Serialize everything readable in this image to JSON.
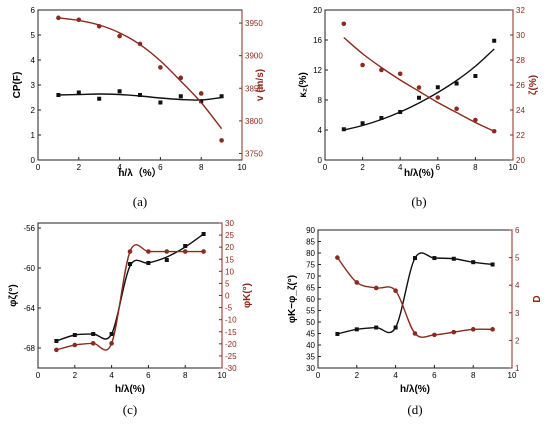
{
  "colors": {
    "black": "#111111",
    "red": "#8b2a1e"
  },
  "chart_data": [
    {
      "type": "scatter",
      "panel_label": "(a)",
      "xlabel": "h/λ（%）",
      "xlim": [
        0,
        10
      ],
      "xticks": [
        0,
        2,
        4,
        6,
        8,
        10
      ],
      "left_axis": {
        "label": "C_P(F)",
        "lim": [
          0,
          6
        ],
        "ticks": [
          0,
          1,
          2,
          3,
          4,
          5,
          6
        ]
      },
      "right_axis": {
        "label": "v (m/s)",
        "lim": [
          3740,
          3970
        ],
        "ticks": [
          3750,
          3800,
          3850,
          3900,
          3950
        ]
      },
      "series": [
        {
          "axis": "left",
          "color": "black",
          "marker": "square",
          "curve": "fit",
          "x": [
            1,
            2,
            3,
            4,
            5,
            6,
            7,
            8,
            9
          ],
          "y": [
            2.6,
            2.7,
            2.45,
            2.75,
            2.6,
            2.3,
            2.55,
            2.35,
            2.55
          ],
          "fit": [
            2.6,
            2.62,
            2.64,
            2.62,
            2.56,
            2.48,
            2.42,
            2.4,
            2.5
          ]
        },
        {
          "axis": "right",
          "color": "red",
          "marker": "circle",
          "curve": "fit",
          "x": [
            1,
            2,
            3,
            4,
            5,
            6,
            7,
            8,
            9
          ],
          "y": [
            3958,
            3955,
            3945,
            3930,
            3918,
            3882,
            3866,
            3842,
            3770
          ],
          "fit": [
            3958,
            3954,
            3947,
            3935,
            3917,
            3892,
            3861,
            3828,
            3788
          ]
        }
      ]
    },
    {
      "type": "scatter",
      "panel_label": "(b)",
      "xlabel": "h/λ(%)",
      "xlim": [
        0,
        10
      ],
      "xticks": [
        0,
        2,
        4,
        6,
        8,
        10
      ],
      "left_axis": {
        "label": "κ₂(%)",
        "lim": [
          0,
          20
        ],
        "ticks": [
          0,
          4,
          8,
          12,
          16,
          20
        ]
      },
      "right_axis": {
        "label": "ζ(%)",
        "lim": [
          20,
          32
        ],
        "ticks": [
          20,
          22,
          24,
          26,
          28,
          30,
          32
        ]
      },
      "series": [
        {
          "axis": "left",
          "color": "black",
          "marker": "square",
          "curve": "fit",
          "x": [
            1,
            2,
            3,
            4,
            5,
            6,
            7,
            8,
            9
          ],
          "y": [
            4.1,
            4.9,
            5.6,
            6.4,
            8.3,
            9.7,
            10.2,
            11.2,
            15.9
          ],
          "fit": [
            4.0,
            4.6,
            5.4,
            6.4,
            7.6,
            9.0,
            10.6,
            12.5,
            14.8
          ]
        },
        {
          "axis": "right",
          "color": "red",
          "marker": "circle",
          "curve": "fit",
          "x": [
            1,
            2,
            3,
            4,
            5,
            6,
            7,
            8,
            9
          ],
          "y": [
            30.9,
            27.6,
            27.2,
            26.9,
            25.8,
            25.0,
            24.1,
            23.2,
            22.3
          ],
          "fit": [
            29.8,
            28.5,
            27.4,
            26.4,
            25.5,
            24.6,
            23.8,
            23.0,
            22.3
          ]
        }
      ]
    },
    {
      "type": "scatter",
      "panel_label": "(c)",
      "xlabel": "h/λ(%)",
      "xlim": [
        0,
        10
      ],
      "xticks": [
        0,
        2,
        4,
        6,
        8,
        10
      ],
      "left_axis": {
        "label": "φ_ζ(°)",
        "lim": [
          -70,
          -55.5
        ],
        "ticks": [
          -68,
          -64,
          -60,
          -56
        ]
      },
      "right_axis": {
        "label": "φ_K(°)",
        "lim": [
          -30,
          30
        ],
        "ticks": [
          -30,
          -25,
          -20,
          -15,
          -10,
          -5,
          0,
          5,
          10,
          15,
          20,
          25,
          30
        ]
      },
      "series": [
        {
          "axis": "left",
          "color": "black",
          "marker": "square",
          "curve": "connect",
          "x": [
            1,
            2,
            3,
            4,
            5,
            6,
            7,
            8,
            9
          ],
          "y": [
            -67.3,
            -66.7,
            -66.6,
            -66.6,
            -59.6,
            -59.5,
            -59.2,
            -57.8,
            -56.6
          ],
          "fit": [
            -67.3,
            -66.7,
            -66.6,
            -66.6,
            -59.8,
            -59.5,
            -58.9,
            -57.9,
            -56.6
          ]
        },
        {
          "axis": "right",
          "color": "red",
          "marker": "circle",
          "curve": "connect",
          "x": [
            1,
            2,
            3,
            4,
            5,
            6,
            7,
            8,
            9
          ],
          "y": [
            -22.5,
            -20.5,
            -19.8,
            -19.8,
            18.2,
            18.2,
            18.2,
            18.2,
            18.2
          ],
          "fit": [
            -22.5,
            -20.5,
            -19.8,
            -19.8,
            18.2,
            18.2,
            18.2,
            18.2,
            18.2
          ]
        }
      ]
    },
    {
      "type": "scatter",
      "panel_label": "(d)",
      "xlabel": "h/λ(%)",
      "xlim": [
        0,
        10
      ],
      "xticks": [
        0,
        2,
        4,
        6,
        8,
        10
      ],
      "left_axis": {
        "label": "φ_K−φ_ζ(°)",
        "lim": [
          30,
          90
        ],
        "ticks": [
          30,
          35,
          40,
          45,
          50,
          55,
          60,
          65,
          70,
          75,
          80,
          85,
          90
        ]
      },
      "right_axis": {
        "label": "D",
        "lim": [
          1,
          6
        ],
        "ticks": [
          1,
          2,
          3,
          4,
          5,
          6
        ]
      },
      "series": [
        {
          "axis": "left",
          "color": "black",
          "marker": "square",
          "curve": "connect",
          "x": [
            1,
            2,
            3,
            4,
            5,
            6,
            7,
            8,
            9
          ],
          "y": [
            44.8,
            46.8,
            47.6,
            47.6,
            77.8,
            77.8,
            77.5,
            76.0,
            75.0
          ],
          "fit": [
            44.8,
            46.8,
            47.6,
            47.6,
            77.8,
            77.8,
            77.5,
            76.0,
            75.0
          ]
        },
        {
          "axis": "right",
          "color": "red",
          "marker": "circle",
          "curve": "connect",
          "x": [
            1,
            2,
            3,
            4,
            5,
            6,
            7,
            8,
            9
          ],
          "y": [
            5.0,
            4.1,
            3.9,
            3.8,
            2.25,
            2.2,
            2.3,
            2.4,
            2.4
          ],
          "fit": [
            5.0,
            4.1,
            3.9,
            3.8,
            2.25,
            2.2,
            2.3,
            2.4,
            2.4
          ]
        }
      ]
    }
  ]
}
